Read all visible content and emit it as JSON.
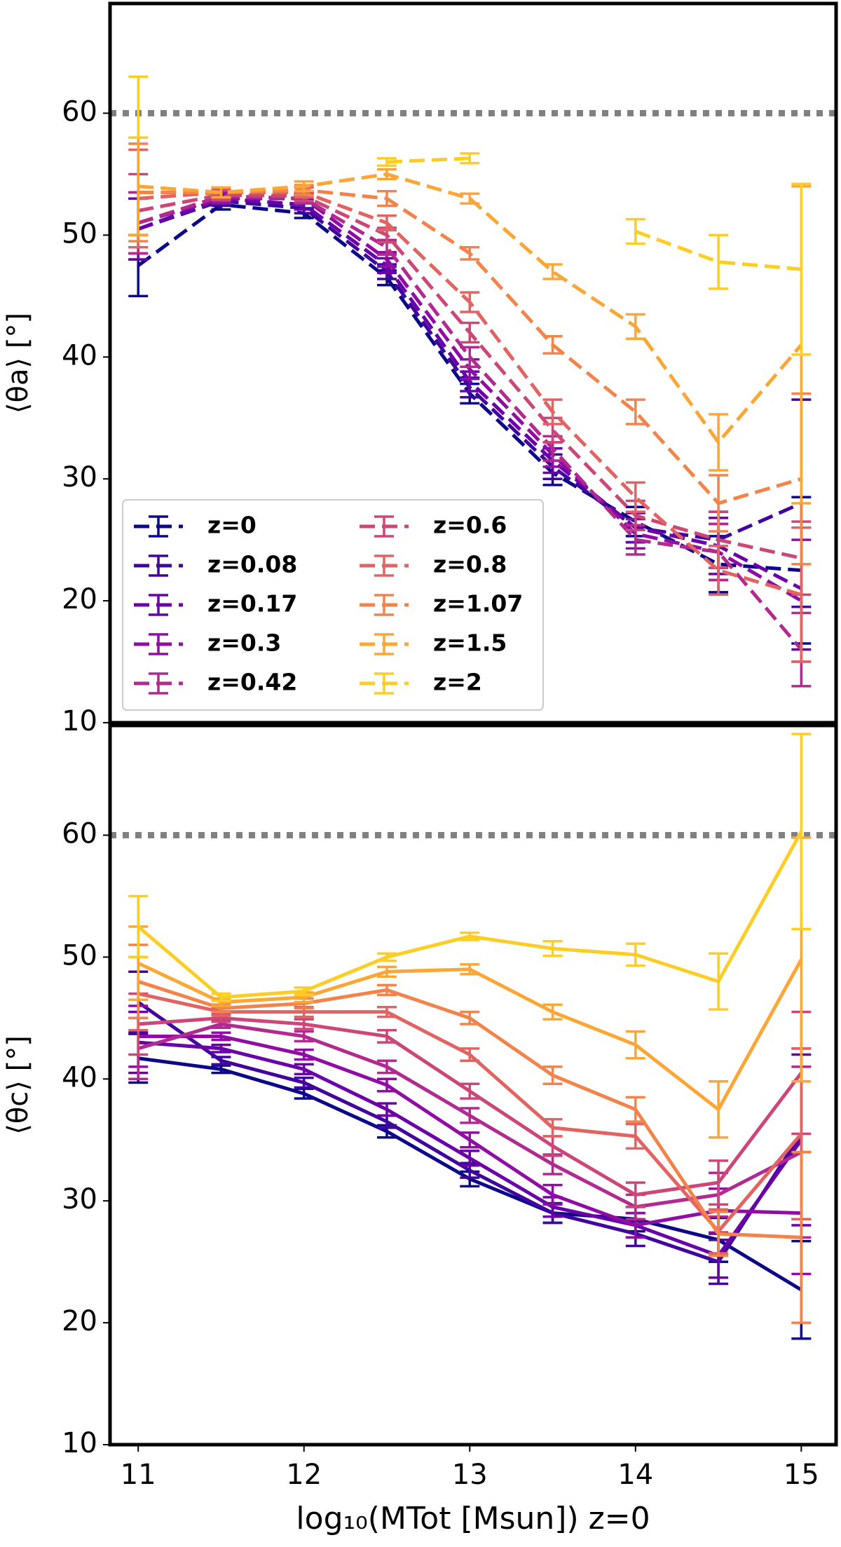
{
  "chart_data": [
    {
      "type": "line",
      "ylabel": "⟨θa⟩ [°]",
      "linestyle": "dashed",
      "legend": "lower left",
      "hline": 60,
      "x": [
        11,
        11.5,
        12,
        12.5,
        13,
        13.5,
        14,
        14.5,
        15
      ],
      "xlim": [
        10.83,
        15.21
      ],
      "ylim": [
        10,
        69
      ],
      "yticks": [
        10,
        20,
        30,
        40,
        50,
        60
      ],
      "series": [
        {
          "name": "z=0",
          "color": "#0d0887",
          "values": [
            47.5,
            52.5,
            51.8,
            46.5,
            37,
            30.5,
            26.5,
            23,
            22.5
          ],
          "errors": [
            2.5,
            0.4,
            0.4,
            0.6,
            0.8,
            1,
            1.2,
            2.3,
            6
          ]
        },
        {
          "name": "z=0.08",
          "color": "#41049d",
          "values": [
            50.5,
            52.8,
            52.2,
            47,
            37.5,
            31,
            26,
            25,
            28
          ],
          "errors": [
            2.5,
            0.4,
            0.4,
            0.6,
            0.8,
            1,
            1.2,
            2.3,
            8.5
          ]
        },
        {
          "name": "z=0.17",
          "color": "#6a00a8",
          "values": [
            50.5,
            53,
            52.5,
            47.5,
            38,
            31.5,
            26,
            24.5,
            21
          ],
          "errors": [
            2.5,
            0.4,
            0.4,
            0.6,
            0.8,
            1,
            1.2,
            2.3,
            5
          ]
        },
        {
          "name": "z=0.3",
          "color": "#8f0da4",
          "values": [
            51,
            53,
            53,
            48,
            39,
            32,
            25.5,
            24,
            20
          ],
          "errors": [
            2.5,
            0.4,
            0.4,
            0.6,
            0.8,
            1,
            1.2,
            2.3,
            5
          ]
        },
        {
          "name": "z=0.42",
          "color": "#b12a90",
          "values": [
            51,
            53.2,
            53,
            49,
            40,
            32.5,
            25,
            24,
            16
          ],
          "errors": [
            2.5,
            0.4,
            0.4,
            0.6,
            0.8,
            1,
            1.2,
            2.3,
            3
          ]
        },
        {
          "name": "z=0.6",
          "color": "#cc4778",
          "values": [
            52,
            53.3,
            53.2,
            50,
            42,
            34,
            27,
            25,
            23.5
          ],
          "errors": [
            3,
            0.4,
            0.4,
            0.6,
            0.8,
            1,
            1.2,
            2.3,
            3
          ]
        },
        {
          "name": "z=0.8",
          "color": "#e16462",
          "values": [
            53,
            53.5,
            53.5,
            51,
            44.5,
            35.5,
            28.5,
            22.5,
            20.5
          ],
          "errors": [
            4,
            0.4,
            0.4,
            0.6,
            0.8,
            1,
            1.2,
            2,
            5.5
          ]
        },
        {
          "name": "z=1.07",
          "color": "#f2844b",
          "values": [
            53.5,
            53.5,
            53.7,
            53,
            48.5,
            41,
            35.5,
            28,
            30
          ],
          "errors": [
            4,
            0.4,
            0.4,
            0.6,
            0.5,
            0.7,
            1,
            2.3,
            7
          ]
        },
        {
          "name": "z=1.5",
          "color": "#fca636",
          "values": [
            54,
            53.5,
            54,
            55,
            53,
            47,
            42.5,
            33,
            41
          ],
          "errors": [
            4,
            0.4,
            0.4,
            0.4,
            0.4,
            0.6,
            1,
            2.3,
            13
          ]
        },
        {
          "name": "z=2",
          "color": "#fcce25",
          "values": [
            60.5,
            null,
            null,
            56,
            56.3,
            null,
            50.3,
            47.8,
            47.2
          ],
          "errors": [
            2.5,
            null,
            null,
            0.3,
            0.4,
            null,
            1,
            2.2,
            7
          ]
        }
      ]
    },
    {
      "type": "line",
      "ylabel": "⟨θc⟩ [°]",
      "xlabel": "log₁₀(MTot [Msun]) z=0",
      "linestyle": "solid",
      "hline": 60,
      "x": [
        11,
        11.5,
        12,
        12.5,
        13,
        13.5,
        14,
        14.5,
        15
      ],
      "xlim": [
        10.83,
        15.21
      ],
      "ylim": [
        10,
        69
      ],
      "yticks": [
        10,
        20,
        30,
        40,
        50,
        60
      ],
      "xticks": [
        11,
        12,
        13,
        14,
        15
      ],
      "series": [
        {
          "name": "z=0",
          "color": "#0d0887",
          "values": [
            41.7,
            40.8,
            38.8,
            35.7,
            31.8,
            29,
            28.5,
            26.8,
            22.7
          ],
          "errors": [
            2,
            0.3,
            0.4,
            0.5,
            0.6,
            0.8,
            1,
            1.8,
            4
          ]
        },
        {
          "name": "z=0.08",
          "color": "#41049d",
          "values": [
            46.3,
            41.5,
            39.7,
            36.5,
            32.5,
            29,
            27.3,
            25,
            35.5
          ],
          "errors": [
            2.5,
            0.3,
            0.4,
            0.5,
            0.6,
            0.8,
            1,
            1.8,
            7
          ]
        },
        {
          "name": "z=0.17",
          "color": "#6a00a8",
          "values": [
            43,
            42.5,
            40.8,
            37.5,
            33.5,
            29.5,
            28,
            25.5,
            35
          ],
          "errors": [
            2.5,
            0.3,
            0.4,
            0.5,
            0.6,
            0.8,
            1,
            1.8,
            7
          ]
        },
        {
          "name": "z=0.3",
          "color": "#8f0da4",
          "values": [
            43.5,
            43.5,
            42,
            39.5,
            35,
            30.5,
            28,
            29.2,
            29
          ],
          "errors": [
            2.5,
            0.3,
            0.4,
            0.5,
            0.6,
            0.8,
            1,
            1.8,
            5
          ]
        },
        {
          "name": "z=0.42",
          "color": "#b12a90",
          "values": [
            42.5,
            44.5,
            43.5,
            41,
            37,
            33,
            29.5,
            30.5,
            34
          ],
          "errors": [
            2.5,
            0.3,
            0.4,
            0.5,
            0.6,
            0.8,
            1,
            1.8,
            7
          ]
        },
        {
          "name": "z=0.6",
          "color": "#cc4778",
          "values": [
            44.5,
            45,
            44.5,
            43.5,
            39,
            34.5,
            30.5,
            31.5,
            40.5
          ],
          "errors": [
            2.5,
            0.3,
            0.4,
            0.5,
            0.6,
            0.8,
            1,
            1.8,
            5
          ]
        },
        {
          "name": "z=0.8",
          "color": "#e16462",
          "values": [
            47,
            45.5,
            45.5,
            45.5,
            42,
            36,
            35.3,
            27.5,
            35.5
          ],
          "errors": [
            3,
            0.3,
            0.4,
            0.4,
            0.5,
            0.7,
            1,
            1.8,
            7
          ]
        },
        {
          "name": "z=1.07",
          "color": "#f2844b",
          "values": [
            48,
            45.8,
            46.2,
            47.3,
            45,
            40.3,
            37.5,
            27.3,
            27
          ],
          "errors": [
            3,
            0.3,
            0.4,
            0.4,
            0.5,
            0.7,
            1,
            1.8,
            7
          ]
        },
        {
          "name": "z=1.5",
          "color": "#fca636",
          "values": [
            49.5,
            46.3,
            46.7,
            48.8,
            49,
            45.5,
            42.8,
            37.5,
            49.8
          ],
          "errors": [
            3,
            0.3,
            0.4,
            0.4,
            0.4,
            0.6,
            1.1,
            2.3,
            10
          ]
        },
        {
          "name": "z=2",
          "color": "#fcce25",
          "values": [
            52.5,
            46.7,
            47.2,
            50,
            51.7,
            50.7,
            50.2,
            48,
            60.3
          ],
          "errors": [
            2.5,
            0.3,
            0.3,
            0.3,
            0.3,
            0.6,
            0.9,
            2.3,
            8
          ]
        }
      ]
    }
  ]
}
